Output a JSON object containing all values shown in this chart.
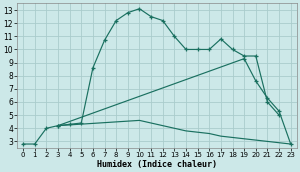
{
  "xlabel": "Humidex (Indice chaleur)",
  "background_color": "#cce8e8",
  "grid_color": "#aacccc",
  "line_color": "#1a7060",
  "xlim": [
    -0.5,
    23.5
  ],
  "ylim": [
    2.5,
    13.5
  ],
  "xticks": [
    0,
    1,
    2,
    3,
    4,
    5,
    6,
    7,
    8,
    9,
    10,
    11,
    12,
    13,
    14,
    15,
    16,
    17,
    18,
    19,
    20,
    21,
    22,
    23
  ],
  "yticks": [
    3,
    4,
    5,
    6,
    7,
    8,
    9,
    10,
    11,
    12,
    13
  ],
  "line1_x": [
    0,
    1,
    2,
    3,
    4,
    5,
    6,
    7,
    8,
    9,
    10,
    11,
    12,
    13,
    14,
    15,
    16,
    17,
    18,
    19,
    20,
    21,
    22
  ],
  "line1_y": [
    2.8,
    2.8,
    4.0,
    4.2,
    4.3,
    4.4,
    8.6,
    10.7,
    12.2,
    12.8,
    13.1,
    12.5,
    12.2,
    11.0,
    10.0,
    10.0,
    10.0,
    10.8,
    10.0,
    9.5,
    9.5,
    6.0,
    5.0
  ],
  "line2_x": [
    3,
    19,
    20,
    21,
    22,
    23
  ],
  "line2_y": [
    4.2,
    9.3,
    7.6,
    6.3,
    5.3,
    2.8
  ],
  "line3_x": [
    3,
    10,
    11,
    12,
    13,
    14,
    15,
    16,
    17,
    18,
    19,
    20,
    21,
    22,
    23
  ],
  "line3_y": [
    4.2,
    4.6,
    4.4,
    4.2,
    4.0,
    3.8,
    3.7,
    3.6,
    3.4,
    3.3,
    3.2,
    3.1,
    3.0,
    2.9,
    2.8
  ]
}
